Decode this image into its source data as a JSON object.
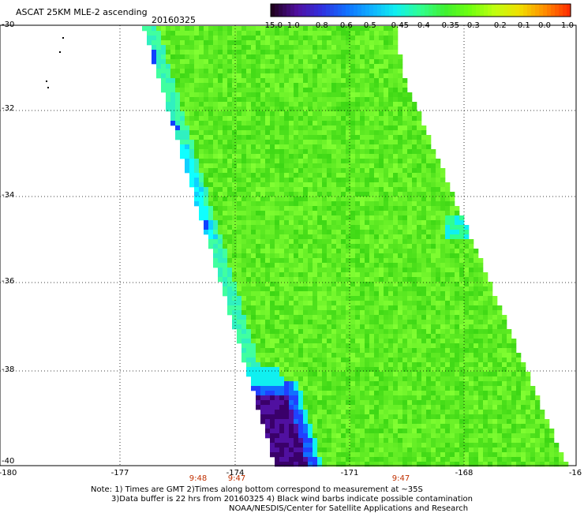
{
  "title": "ASCAT 25KM MLE-2 ascending",
  "date": "20160325",
  "colorbar": {
    "labels": [
      "-15.0",
      "-1.0",
      "-0.8",
      "-0.6",
      "-0.5",
      "-0.45",
      "-0.4",
      "-0.35",
      "-0.3",
      "-0.2",
      "-0.1",
      "0.0",
      "1.0"
    ],
    "colors": [
      "#200020",
      "#5010a0",
      "#3030e0",
      "#1070ff",
      "#10b0ff",
      "#10f0f0",
      "#30ff90",
      "#40f030",
      "#70ff10",
      "#c0ff10",
      "#f0e000",
      "#ff9000",
      "#ff3000"
    ]
  },
  "axes": {
    "lat_labels": [
      "-30",
      "-32",
      "-34",
      "-36",
      "-38",
      "-40"
    ],
    "lon_labels": [
      "-180",
      "-177",
      "-174",
      "-171",
      "-168",
      "-16"
    ]
  },
  "times": [
    "9:48",
    "9:47",
    "9:47"
  ],
  "notes": [
    "Note: 1) Times are GMT 2)Times along bottom correspond to measurement at ~35S",
    "3)Data buffer is 22 hrs from 20160325 4) Black wind barbs indicate possible contamination",
    "NOAA/NESDIS/Center for Satellite Applications and Research"
  ]
}
